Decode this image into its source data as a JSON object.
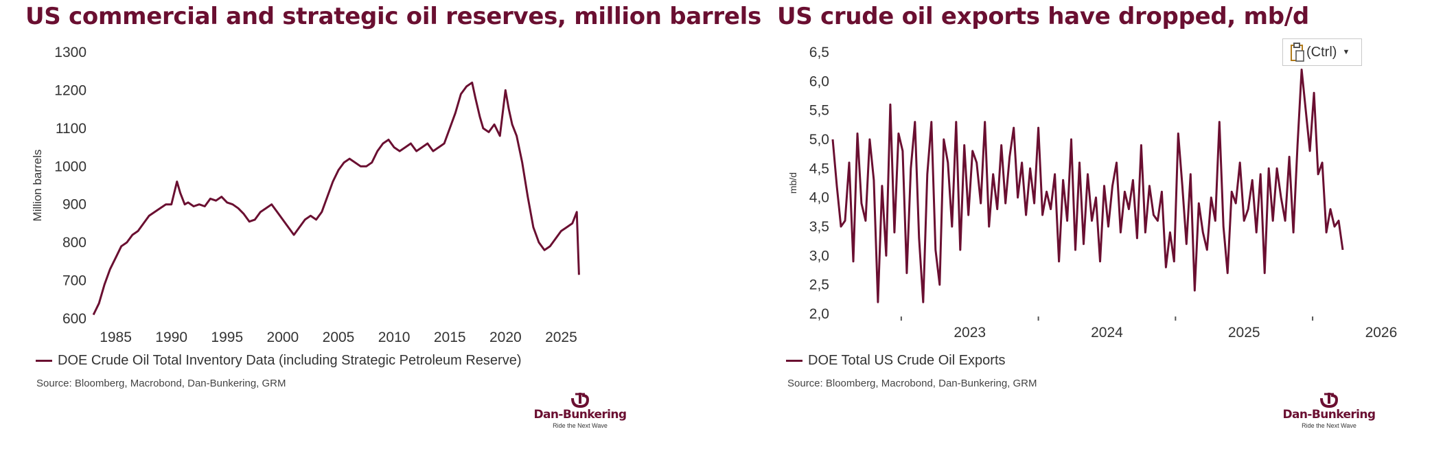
{
  "brand": {
    "color": "#6a0f31",
    "logo_name": "Dan-Bunkering",
    "logo_tagline": "Ride the Next Wave"
  },
  "paste_button": {
    "label": "(Ctrl)",
    "icon": "clipboard-paste-icon"
  },
  "chart_data": [
    {
      "type": "line",
      "title": "US commercial and strategic oil reserves, million barrels",
      "ylabel": "Million barrels",
      "xlabel": "",
      "ylim": [
        600,
        1300
      ],
      "xlim": [
        1982.5,
        2027.5
      ],
      "yticks": [
        "600",
        "700",
        "800",
        "900",
        "1000",
        "1100",
        "1200",
        "1300"
      ],
      "xticks": [
        "1985",
        "1990",
        "1995",
        "2000",
        "2005",
        "2010",
        "2015",
        "2020",
        "2025"
      ],
      "grid": false,
      "legend_position": "bottom",
      "series": [
        {
          "name": "DOE Crude Oil Total Inventory Data (including Strategic Petroleum Reserve)",
          "x": [
            1983.0,
            1983.5,
            1984.0,
            1984.5,
            1985.0,
            1985.5,
            1986.0,
            1986.5,
            1987.0,
            1987.5,
            1988.0,
            1988.5,
            1989.0,
            1989.5,
            1990.0,
            1990.5,
            1990.8,
            1991.2,
            1991.5,
            1992.0,
            1992.5,
            1993.0,
            1993.5,
            1994.0,
            1994.5,
            1995.0,
            1995.5,
            1996.0,
            1996.5,
            1997.0,
            1997.5,
            1998.0,
            1998.5,
            1999.0,
            1999.5,
            2000.0,
            2000.5,
            2001.0,
            2001.5,
            2002.0,
            2002.5,
            2003.0,
            2003.5,
            2004.0,
            2004.5,
            2005.0,
            2005.5,
            2006.0,
            2006.5,
            2007.0,
            2007.5,
            2008.0,
            2008.5,
            2009.0,
            2009.5,
            2010.0,
            2010.5,
            2011.0,
            2011.5,
            2012.0,
            2012.5,
            2013.0,
            2013.5,
            2014.0,
            2014.5,
            2015.0,
            2015.5,
            2016.0,
            2016.5,
            2017.0,
            2017.3,
            2017.7,
            2018.0,
            2018.5,
            2019.0,
            2019.5,
            2020.0,
            2020.3,
            2020.6,
            2021.0,
            2021.5,
            2022.0,
            2022.5,
            2023.0,
            2023.5,
            2024.0,
            2024.5,
            2025.0,
            2025.5,
            2026.0,
            2026.4,
            2026.6
          ],
          "values": [
            610,
            640,
            690,
            730,
            760,
            790,
            800,
            820,
            830,
            850,
            870,
            880,
            890,
            900,
            900,
            960,
            930,
            900,
            905,
            895,
            900,
            895,
            915,
            910,
            920,
            905,
            900,
            890,
            875,
            855,
            860,
            880,
            890,
            900,
            880,
            860,
            840,
            820,
            840,
            860,
            870,
            860,
            880,
            920,
            960,
            990,
            1010,
            1020,
            1010,
            1000,
            1000,
            1010,
            1040,
            1060,
            1070,
            1050,
            1040,
            1050,
            1060,
            1040,
            1050,
            1060,
            1040,
            1050,
            1060,
            1100,
            1140,
            1190,
            1210,
            1220,
            1180,
            1130,
            1100,
            1090,
            1110,
            1080,
            1200,
            1150,
            1110,
            1080,
            1010,
            920,
            840,
            800,
            780,
            790,
            810,
            830,
            840,
            850,
            880,
            715
          ]
        }
      ]
    },
    {
      "type": "line",
      "title": "US crude oil exports have dropped, mb/d",
      "ylabel": "mb/d",
      "xlabel": "",
      "ylim": [
        2.0,
        6.5
      ],
      "xlim": [
        2022.5,
        2026.3
      ],
      "yticks": [
        "2,0",
        "2,5",
        "3,0",
        "3,5",
        "4,0",
        "4,5",
        "5,0",
        "5,5",
        "6,0",
        "6,5"
      ],
      "xticks": [
        "2023",
        "2024",
        "2025",
        "2026"
      ],
      "grid": false,
      "legend_position": "bottom",
      "series": [
        {
          "name": "DOE Total US Crude Oil Exports",
          "x": [
            2022.5,
            2022.53,
            2022.56,
            2022.59,
            2022.62,
            2022.65,
            2022.68,
            2022.71,
            2022.74,
            2022.77,
            2022.8,
            2022.83,
            2022.86,
            2022.89,
            2022.92,
            2022.95,
            2022.98,
            2023.01,
            2023.04,
            2023.07,
            2023.1,
            2023.13,
            2023.16,
            2023.19,
            2023.22,
            2023.25,
            2023.28,
            2023.31,
            2023.34,
            2023.37,
            2023.4,
            2023.43,
            2023.46,
            2023.49,
            2023.52,
            2023.55,
            2023.58,
            2023.61,
            2023.64,
            2023.67,
            2023.7,
            2023.73,
            2023.76,
            2023.79,
            2023.82,
            2023.85,
            2023.88,
            2023.91,
            2023.94,
            2023.97,
            2024.0,
            2024.03,
            2024.06,
            2024.09,
            2024.12,
            2024.15,
            2024.18,
            2024.21,
            2024.24,
            2024.27,
            2024.3,
            2024.33,
            2024.36,
            2024.39,
            2024.42,
            2024.45,
            2024.48,
            2024.51,
            2024.54,
            2024.57,
            2024.6,
            2024.63,
            2024.66,
            2024.69,
            2024.72,
            2024.75,
            2024.78,
            2024.81,
            2024.84,
            2024.87,
            2024.9,
            2024.93,
            2024.96,
            2024.99,
            2025.02,
            2025.05,
            2025.08,
            2025.11,
            2025.14,
            2025.17,
            2025.2,
            2025.23,
            2025.26,
            2025.29,
            2025.32,
            2025.35,
            2025.38,
            2025.41,
            2025.44,
            2025.47,
            2025.5,
            2025.53,
            2025.56,
            2025.59,
            2025.62,
            2025.65,
            2025.68,
            2025.71,
            2025.74,
            2025.77,
            2025.8,
            2025.83,
            2025.86,
            2025.89,
            2025.92,
            2025.95,
            2025.98,
            2026.01,
            2026.04,
            2026.07,
            2026.1,
            2026.13,
            2026.16,
            2026.19,
            2026.22
          ],
          "values": [
            5.0,
            4.2,
            3.5,
            3.6,
            4.6,
            2.9,
            5.1,
            3.9,
            3.6,
            5.0,
            4.3,
            2.2,
            4.2,
            3.0,
            5.6,
            3.4,
            5.1,
            4.8,
            2.7,
            4.5,
            5.3,
            3.3,
            2.2,
            4.4,
            5.3,
            3.1,
            2.5,
            5.0,
            4.6,
            3.5,
            5.3,
            3.1,
            4.9,
            3.7,
            4.8,
            4.6,
            3.9,
            5.3,
            3.5,
            4.4,
            3.8,
            4.9,
            3.9,
            4.7,
            5.2,
            4.0,
            4.6,
            3.7,
            4.5,
            3.9,
            5.2,
            3.7,
            4.1,
            3.8,
            4.4,
            2.9,
            4.3,
            3.6,
            5.0,
            3.1,
            4.6,
            3.2,
            4.4,
            3.6,
            4.0,
            2.9,
            4.2,
            3.5,
            4.2,
            4.6,
            3.4,
            4.1,
            3.8,
            4.3,
            3.3,
            4.9,
            3.4,
            4.2,
            3.7,
            3.6,
            4.1,
            2.8,
            3.4,
            2.9,
            5.1,
            4.2,
            3.2,
            4.4,
            2.4,
            3.9,
            3.4,
            3.1,
            4.0,
            3.6,
            5.3,
            3.5,
            2.7,
            4.1,
            3.9,
            4.6,
            3.6,
            3.8,
            4.3,
            3.4,
            4.4,
            2.7,
            4.5,
            3.6,
            4.5,
            4.0,
            3.6,
            4.7,
            3.4,
            4.9,
            6.2,
            5.5,
            4.8,
            5.8,
            4.4,
            4.6,
            3.4,
            3.8,
            3.5,
            3.6,
            3.1
          ]
        }
      ]
    }
  ],
  "sources": [
    "Source: Bloomberg, Macrobond, Dan-Bunkering, GRM",
    "Source: Bloomberg, Macrobond, Dan-Bunkering, GRM"
  ]
}
